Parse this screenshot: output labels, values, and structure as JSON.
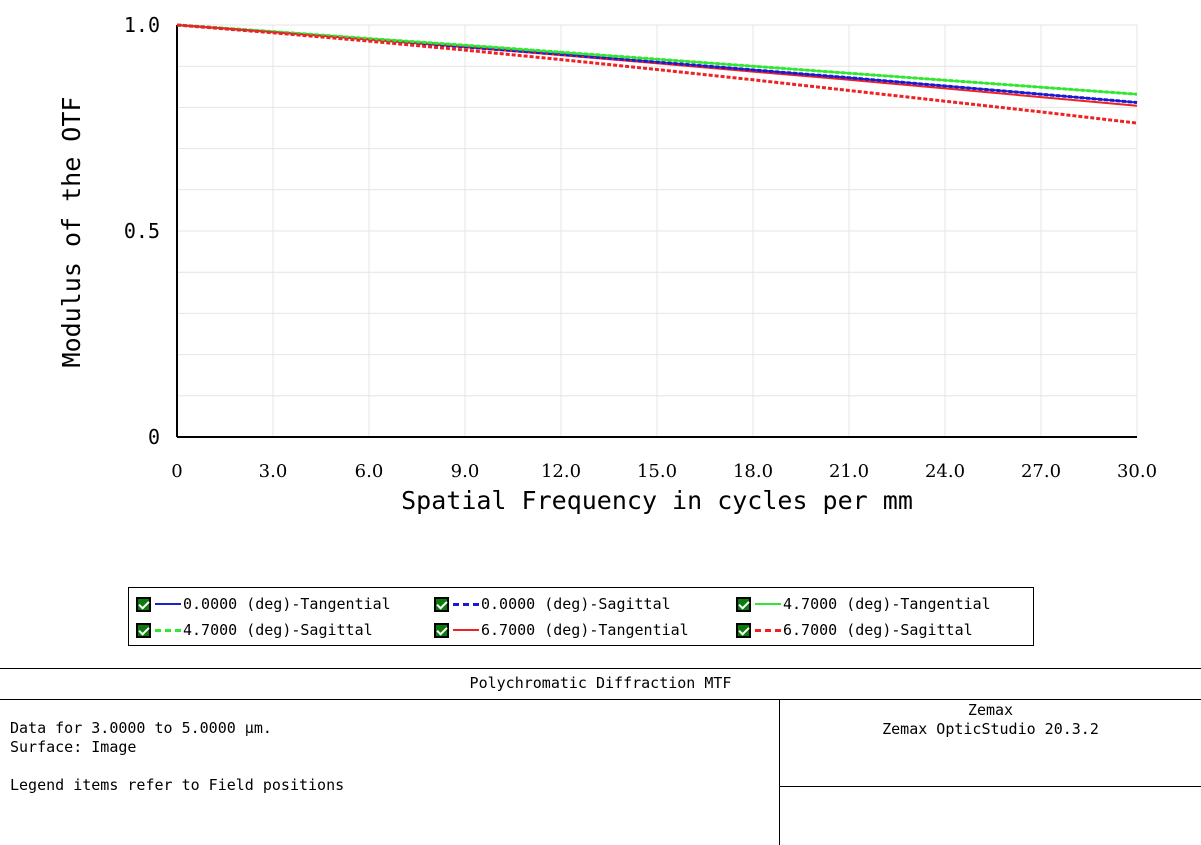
{
  "chart_data": {
    "type": "line",
    "title": "Polychromatic Diffraction MTF",
    "xlabel": "Spatial Frequency in cycles per mm",
    "ylabel": "Modulus of the OTF",
    "xlim": [
      0,
      30
    ],
    "ylim": [
      0,
      1
    ],
    "x_ticks": [
      "0",
      "3.0",
      "6.0",
      "9.0",
      "12.0",
      "15.0",
      "18.0",
      "21.0",
      "24.0",
      "27.0",
      "30.0"
    ],
    "y_ticks": [
      "0",
      "0.5",
      "1.0"
    ],
    "grid": true,
    "x": [
      0,
      3,
      6,
      9,
      12,
      15,
      18,
      21,
      24,
      27,
      30
    ],
    "series": [
      {
        "name": "0.0000 (deg)-Tangential",
        "color": "#1f1fcc",
        "dash": "solid",
        "values": [
          1.0,
          0.983,
          0.965,
          0.947,
          0.929,
          0.91,
          0.891,
          0.872,
          0.852,
          0.832,
          0.812
        ]
      },
      {
        "name": "0.0000 (deg)-Sagittal",
        "color": "#1a1ad6",
        "dash": "dashed",
        "values": [
          1.0,
          0.983,
          0.965,
          0.947,
          0.929,
          0.91,
          0.891,
          0.872,
          0.852,
          0.832,
          0.812
        ]
      },
      {
        "name": "4.7000 (deg)-Tangential",
        "color": "#33e633",
        "dash": "solid",
        "values": [
          1.0,
          0.984,
          0.967,
          0.951,
          0.934,
          0.917,
          0.9,
          0.883,
          0.866,
          0.849,
          0.832
        ]
      },
      {
        "name": "4.7000 (deg)-Sagittal",
        "color": "#33e633",
        "dash": "dashed",
        "values": [
          1.0,
          0.984,
          0.967,
          0.951,
          0.934,
          0.917,
          0.9,
          0.883,
          0.866,
          0.849,
          0.832
        ]
      },
      {
        "name": "6.7000 (deg)-Tangential",
        "color": "#ee2222",
        "dash": "solid",
        "values": [
          1.0,
          0.983,
          0.965,
          0.946,
          0.927,
          0.907,
          0.887,
          0.867,
          0.846,
          0.825,
          0.804
        ]
      },
      {
        "name": "6.7000 (deg)-Sagittal",
        "color": "#ee2222",
        "dash": "dashed",
        "values": [
          1.0,
          0.981,
          0.961,
          0.939,
          0.916,
          0.892,
          0.867,
          0.841,
          0.815,
          0.789,
          0.762
        ]
      }
    ]
  },
  "legend": {
    "items": [
      {
        "label": "0.0000 (deg)-Tangential",
        "color": "#1f1fcc",
        "dash": "solid"
      },
      {
        "label": "0.0000 (deg)-Sagittal",
        "color": "#1a1ad6",
        "dash": "dashed"
      },
      {
        "label": "4.7000 (deg)-Tangential",
        "color": "#33e633",
        "dash": "solid"
      },
      {
        "label": "4.7000 (deg)-Sagittal",
        "color": "#33e633",
        "dash": "dashed"
      },
      {
        "label": "6.7000 (deg)-Tangential",
        "color": "#ee2222",
        "dash": "solid"
      },
      {
        "label": "6.7000 (deg)-Sagittal",
        "color": "#ee2222",
        "dash": "dashed"
      }
    ]
  },
  "info": {
    "title": "Polychromatic Diffraction MTF",
    "line1": "Data for 3.0000 to 5.0000 µm.",
    "line2": "Surface: Image",
    "line3": "Legend items refer to Field positions",
    "company": "Zemax",
    "product": "Zemax OpticStudio 20.3.2"
  }
}
